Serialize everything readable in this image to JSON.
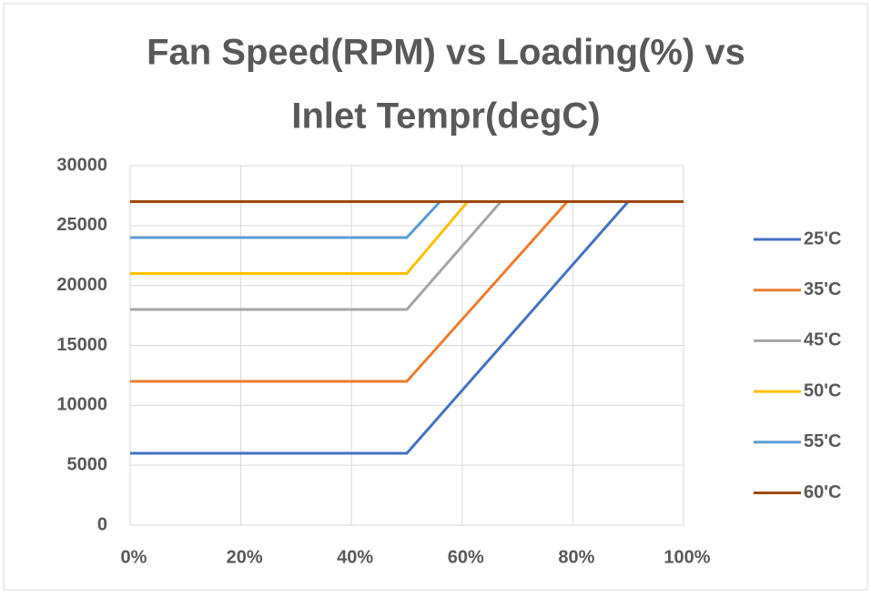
{
  "chart_data": {
    "type": "line",
    "title": [
      "Fan Speed(RPM) vs Loading(%) vs",
      "Inlet Tempr(degC)"
    ],
    "series": [
      {
        "name": "25'C",
        "color": "#4472c4",
        "x": [
          0,
          50,
          90,
          100
        ],
        "values": [
          6000,
          6000,
          27000,
          27000
        ]
      },
      {
        "name": "35'C",
        "color": "#ed7d31",
        "x": [
          0,
          50,
          79,
          100
        ],
        "values": [
          12000,
          12000,
          27000,
          27000
        ]
      },
      {
        "name": "45'C",
        "color": "#a5a5a5",
        "x": [
          0,
          50,
          67,
          100
        ],
        "values": [
          18000,
          18000,
          27000,
          27000
        ]
      },
      {
        "name": "50'C",
        "color": "#ffc000",
        "x": [
          0,
          50,
          61,
          100
        ],
        "values": [
          21000,
          21000,
          27000,
          27000
        ]
      },
      {
        "name": "55'C",
        "color": "#5b9bd5",
        "x": [
          0,
          50,
          56,
          100
        ],
        "values": [
          24000,
          24000,
          27000,
          27000
        ]
      },
      {
        "name": "60'C",
        "color": "#9e480e",
        "x": [
          0,
          100
        ],
        "values": [
          27000,
          27000
        ]
      }
    ],
    "xlim": [
      0,
      100
    ],
    "xticks": [
      {
        "value": 0,
        "label": "0%"
      },
      {
        "value": 20,
        "label": "20%"
      },
      {
        "value": 40,
        "label": "40%"
      },
      {
        "value": 60,
        "label": "60%"
      },
      {
        "value": 80,
        "label": "80%"
      },
      {
        "value": 100,
        "label": "100%"
      }
    ],
    "ylim": [
      0,
      30000
    ],
    "yticks": [
      0,
      5000,
      10000,
      15000,
      20000,
      25000,
      30000
    ],
    "grid": true,
    "legend": "right"
  }
}
